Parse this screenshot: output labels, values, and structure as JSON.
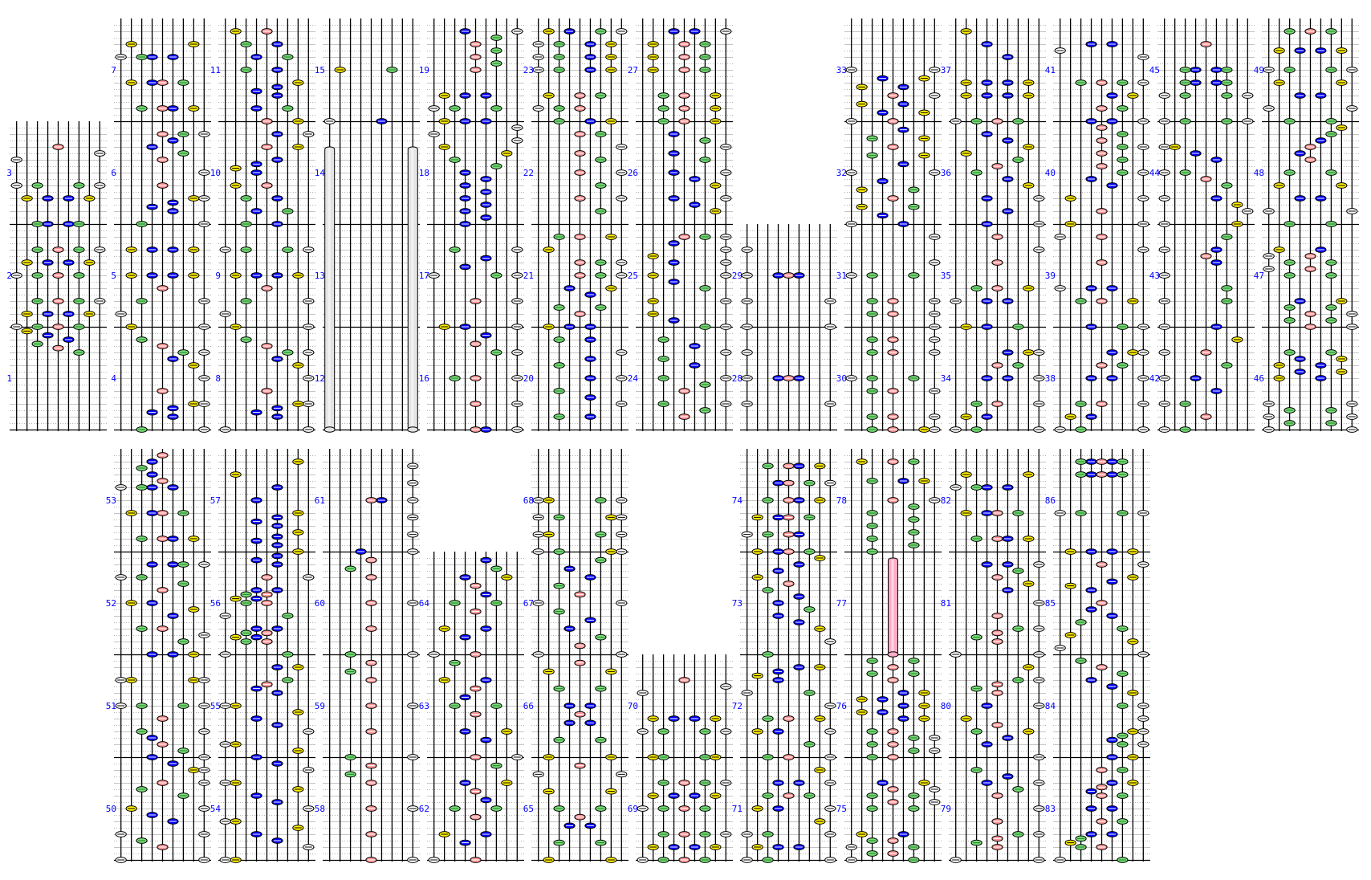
{
  "lane_colors": [
    "#ffffff",
    "#ffee00",
    "#77dd77",
    "#0000ff",
    "#ff9999",
    "#0000ff",
    "#77dd77",
    "#ffee00",
    "#ffffff"
  ],
  "lane_midline_colors": [
    "#000000",
    "#000000",
    "#2a7a2a",
    "#ffffff",
    "#ffffff",
    "#ffffff",
    "#2a7a2a",
    "#000000",
    "#000000"
  ],
  "hold_colors": {
    "white": "#e4e4e4",
    "red": "#ffaac8"
  },
  "number_color": "#0000ff",
  "rows": [
    {
      "columns": [
        [
          1,
          2,
          3
        ],
        [
          4,
          5,
          6,
          7
        ],
        [
          8,
          9,
          10,
          11
        ],
        [
          12,
          13,
          14,
          15
        ],
        [
          16,
          17,
          18,
          19
        ],
        [
          20,
          21,
          22,
          23
        ],
        [
          24,
          25,
          26,
          27
        ],
        [
          28,
          29
        ],
        [
          30,
          31,
          32,
          33
        ],
        [
          34,
          35,
          36,
          37
        ],
        [
          38,
          39,
          40,
          41
        ],
        [
          42,
          43,
          44,
          45
        ],
        [
          46,
          47,
          48,
          49
        ]
      ]
    },
    {
      "columns": [
        [
          50,
          51,
          52,
          53
        ],
        [
          54,
          55,
          56,
          57
        ],
        [
          58,
          59,
          60,
          61
        ],
        [
          62,
          63,
          64
        ],
        [
          65,
          66,
          67,
          68
        ],
        [
          69,
          70
        ],
        [
          71,
          72,
          73,
          74
        ],
        [
          75,
          76,
          77,
          78
        ],
        [
          79,
          80,
          81,
          82
        ],
        [
          83,
          84,
          85,
          86
        ]
      ]
    }
  ],
  "notes_format": "position-in-16ths-from-measure-start:lanes",
  "measures": {
    "1": "12:7 12.67:5 13.33:3 14:6 14.67:4 15.33:2",
    "2": "0:1357 2:2468 4:3579 8:1357 10:2468 12:3579",
    "3": "0:3467 4:2468 6:1379 10:1 11:9 12:5",
    "4": "0:39 2:6 2.67:4 3.33:6 4:89 6:5 8:9 10:8 11:6 12:79 13:5 14:3",
    "5": "0:29 2:1 4:39 6:5 8:2468 12:2468",
    "6": "0:39 2:6 2.67:4 3.33:6 4:89 6:5 8:9 10:5 11:7 12:4 13:6 14:579",
    "7": "2:3568 6:2457 10:1346 12:28",
    "8": "0:19 2:6 2.67:4 3.33:6 4:89 6:5 8:9 10:8 11:6 12:79 13:5 14:3",
    "9": "0:29 2:1 4:39 6:5 8:2468 12:1379",
    "10": "0:36 2:47 4:36 6:25 8:4 8.67:2 9.33:4 10:6 12:58 14:69",
    "11": "0:58 2:47 4:6 4.67:4 5.33:6 6:8 8:36 10:47 12:36 14:25",
    "12": "",
    "13": "",
    "14": "",
    "15": "0:16 8:27",
    "16": "0:569 4:59 8:359 12:79 13.33:5 14.67:6",
    "17": "0:249 4:59 8:179 9.33:4 10.67:6 12:39",
    "18": "0:4 1:6 2:4 3:6 4:4 5:6 6:4 7:6 8:4 9:7 10:3 11:8 12:2 13:9 14:1 15:9",
    "19": "0:246 2:137 4:246 8:5 9:7 10:5 11:7 12:5 13:7 14:49",
    "20": "2:36 4:9 5:6 6:3 8:69 10:3 11:6 12:9 14:36",
    "21": "0:246 2:5 3:37 5:6 6:48 8:579 10:579 12:2 14:358",
    "22": "2:7 4:59 6:7 8:59 10:7 11:5 12:9 14:57",
    "23": "0:368 2:135 4:257 8:1368 10:1368 12:1368 14:2479",
    "24": "2:5 3:7 4:39 6:5 7:7 8:39 10:6 11:3 12:9 13:6 14:3",
    "25": "0:79 1:4 2:2 4:29 6:7 7:4 8:29 10:49 11:2 12:9 13:4 14:579",
    "26": "2:8 3:6 4:49 6:8 7:6 8:49 10:7 11:4 12:9 13:7 14:4",
    "27": "0:358 2:358 4:358 8:257 10:257 12:257 14:469",
    "28": "4:19 8:1456 12:1",
    "29": "0:19 4:19 8:1456 12:1",
    "30": "0:3589 2:359 6:359 8:137 12:359 14:359",
    "31": "0:9 2:359 4:359 8:137 10:9 14:9",
    "32": "0:16 1.33:4 2.67:27 4:5 5.33:27 6.67:4 8:19 9.33:6 10.67:38 12:5 13.33:38 14.67:6",
    "33": "0:15 1.33:48 2.67:26 4:59 5.33:26 6.67:48 8:19",
    "34": "0:139 2:24 4:359 8:469 10:57 12:689",
    "35": "0:247 4:146 6:358 10:5 12:9 14:5",
    "36": "0:49 2:6 4:49 6:8 7:6 8:3 9:5 10:7 11:2 12:8 13:6 14:4",
    "37": "0:1357 4:2468 6:2468 10:6 12:4 14:2",
    "38": "0:139 2:24 4:359 8:469 10:57 12:689",
    "39": "0:479 4:358 6:146 10:5 12:9 14:15",
    "40": "0:29 2:5 4:29 6:6 7:4 8:79 9:5 10:7 11:5 12:79 13:5 14:7 15:5",
    "41": "0:469 2:57 4:68 6:3579 10:9 11:1 12:46",
    "42": "0:13 2:5 4:13 6:6 8:14 10:7 12:15 14:8",
    "43": "0:16 4:17 6:7 8:1 10:6 11:5 12:16 14:7",
    "44": "0:18 2:9 3:8 4:16 6:7 7:5 8:13 10:6 11:4 12:12",
    "45": "0:1379 4:1379 6:3467 8:3467 12:5",
    "46": "0:19 1:37 2:19 3:37 4:19 8:26 9:48 10:26 11:48 12:37",
    "47": "0:59 1:37 2:59 3:37 4:48 8:37 9:15 10:37 11:15 12:26",
    "48": "0:37 2:19 4:46 6:28 8:37 10:5 11:4 12:5 13:6 14:7 15:8",
    "49": "0:37 2:19 4:46 6:28 8:1379 11:2468 14:357",
    "50": "0:19 2:5 3:3 4:19 6:6 7:4 8:29 10:7 11:3 12:59 14:89 15:6",
    "51": "0:49 1:7 2:5 3:4 4:39 6:5 8:1379 12:1289",
    "52": "0:468 2:7 3:9 4:35 6:6 7:8 8:24 10:5 11:7 12:13 14:4679",
    "53": "2:3568 6:2457 10:1346 11:5 12:4 13:3 14:4 15:5",
    "54": "0:12 2:9 3:6 4:4 5:8 6:12 8:9 9:6 10:4 11:8 12:12 14:9 15:6",
    "55": "0:4 1:8 2:12 4:9 5:6 6:4 7:8 8:12 10:6 10.67:4 11.33:5 12:7 14:68",
    "56": "0:17 2:35 2.67:24 3.33:35 4:46 6:17 8:35 8.67:24 9.33:35 10:46 12:59 14:6 14.67:4 15.33:6",
    "57": "0:8 1:6 1.67:4 2.33:6 3:8 4:6 4.67:4 5.33:6 6:8 8:4 10:6 12:2 14:8",
    "58": "0:59 4:5 8:59 12:5 13.33:3 14.67:5",
    "59": "0:39 4:5 8:59 12:5 13.33:3 14.67:5",
    "60": "0:39 4:5 8:59 12:5 13.33:3 14.67:5",
    "61": "0:49 2.67:9 5.33:9 8:569 10.67:9 13.33:9",
    "62": "0:15 2.67:4 4:26 6.67:5 8:37 9.33:6 10.67:5 12:48 14.67:7",
    "63": "0:59 2.67:6 4:48 6.67:5 8:37 9.33:4 10.67:5 12:26 14.67:3",
    "64": "0:15 2.67:4 4:26 6.67:5 8:37 9.33:6 10.67:5 12:48 13.33:7 14.67:6",
    "65": "0:28 2.67:37 5.33:46 6.67:5 8:37 10.67:28 13.33:19 14.67:5",
    "66": "0:28 2.67:37 5.33:46 6.67:5 8:46 10.67:37 13.33:28 14.67:5",
    "67": "0:19 1.33:5 2.67:7 4:4 5.33:6 6.67:3 8:19 9.33:5 10.67:3 12:6 13.33:4 14.67:7",
    "68": "0:1389 2.67:1279 5.33:1389 8:1279",
    "69": "0:1357 2:2468 4:3579 8:1357 10:2468 12:3579",
    "70": "0:2378 4:1379 6:2468 10:1 11:9 12:5",
    "71": "0:139 2:246 4:139 6:8 8:249 10:357 12:469 14:8",
    "72": "0:359 2:7 4:249 6:358 8:9 10:17 12:4 12.67:2 13.33:4 14:68",
    "73": "0:3 2:9 4:8 5:6 6:4 7:7 8:4 9:6 10:3 11:5 12:2 13:4 14:6 15:8",
    "74": "0:2457 2.67:1356 5.33:2457 8:3568 10.67:4579 13.33:3568",
    "75": "0:17 1:35 2:17 3:35 4:26 8:37 9:59 10:37 11:59 12:48",
    "76": "0:35 1:79 2:35 3:79 4:35 6:68 7:24 8:68 9:24 10:68 12:5 13:37 14:5 15:37",
    "77": "",
    "78": "0:3 1:7 2:3 3:7 4:3 5:7 6:3 7:7 8:59 11:368 14:257",
    "79": "0:19 2:5 2.67:3 3.33:5 4:79 6:5 8:9 10:5 11:7 12:49 13:6 14:3",
    "80": "0:9 2:4 3:6 4:38 5:5 6:2 8:49 10:5 10.67:3 11.33:5 12:79 14:8",
    "81": "0:19 2:5 2.67:3 3.33:5 4:79 6:5 8:9 10:6 11:8 12:5 13:7 14:469",
    "82": "2:3568 6:2457 10:1346 12:28",
    "83": "0:17 2:35 2.67:2 3.33:3 4:46 6:57 8:46 10:57 10.67:4 11.33:5 12:68 14:57",
    "84": "0:68 2:79 2.67:6 3.33:7 4:89 6:9 8:79 10:8 11:6 12:4 13:7 14:5 15:3",
    "85": "0:9 1:1 2:8 3:2 4:7 5:3 6:6 7:4 8:5 10:4 10.67:2 11.33:6 12:8 14:59",
    "86": "0:2468 6:1379 12:34567 14:34567"
  },
  "holds": [
    {
      "lane": 1,
      "start_measure": 12,
      "start_pos": 0,
      "end_measure": 14,
      "end_pos": 12
    },
    {
      "lane": 9,
      "start_measure": 12,
      "start_pos": 0,
      "end_measure": 14,
      "end_pos": 12
    },
    {
      "lane": 5,
      "start_measure": 77,
      "start_pos": 0,
      "end_measure": 77,
      "end_pos": 15
    }
  ]
}
